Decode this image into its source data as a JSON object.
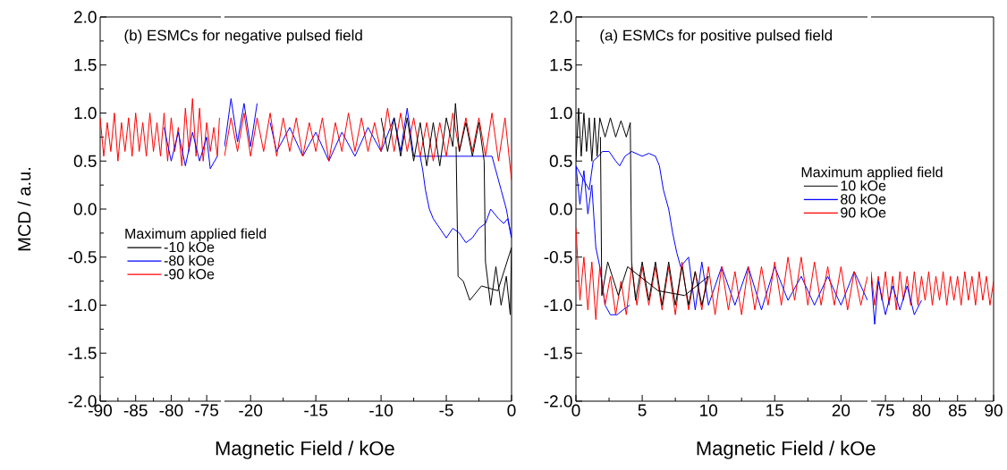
{
  "chart_data": [
    {
      "type": "line",
      "title": "(b) ESMCs for negative pulsed field",
      "ylabel": "MCD / a.u.",
      "xlim": [
        -90,
        -73
      ],
      "xticks": [
        -90,
        -85,
        -80,
        -75
      ],
      "ylim": [
        -2,
        2
      ],
      "yticks": [
        {
          "value": -2,
          "label": "-2.0"
        },
        {
          "value": -1.5,
          "label": "-1.5"
        },
        {
          "value": -1,
          "label": "-1.0"
        },
        {
          "value": -0.5,
          "label": "-0.5"
        },
        {
          "value": 0,
          "label": "0.0"
        },
        {
          "value": 0.5,
          "label": "0.5"
        },
        {
          "value": 1,
          "label": "1.0"
        },
        {
          "value": 1.5,
          "label": "1.5"
        },
        {
          "value": 2,
          "label": "2.0"
        }
      ],
      "series": [
        {
          "color": "#0000ff",
          "x": [
            -81,
            -80,
            -79,
            -78,
            -77,
            -76,
            -75,
            -74.5,
            -73.5
          ],
          "values": [
            0.85,
            0.5,
            0.8,
            0.45,
            0.8,
            0.5,
            0.75,
            0.42,
            0.55
          ]
        },
        {
          "color": "#ff0000",
          "x": [
            -90,
            -89.5,
            -89,
            -88.5,
            -88,
            -87.5,
            -87,
            -86.5,
            -86,
            -85.5,
            -85,
            -84.5,
            -84,
            -83.5,
            -83,
            -82.5,
            -82,
            -81.5,
            -81,
            -80.5,
            -80,
            -79.5,
            -79,
            -78.5,
            -78,
            -77.5,
            -77,
            -76.5,
            -76,
            -75.5,
            -75,
            -74.5,
            -74,
            -73.5,
            -73.2
          ],
          "values": [
            0.95,
            0.55,
            0.9,
            0.6,
            1.0,
            0.5,
            0.9,
            0.6,
            0.95,
            0.55,
            1.0,
            0.6,
            0.9,
            0.55,
            1.0,
            0.6,
            0.9,
            0.55,
            1.0,
            0.5,
            0.95,
            0.6,
            0.85,
            0.45,
            1.05,
            0.6,
            1.15,
            0.55,
            1.05,
            0.5,
            0.9,
            0.6,
            0.85,
            0.55,
            0.95
          ]
        }
      ]
    },
    {
      "type": "line",
      "xlabel": "Magnetic Field / kOe",
      "legend_title": "Maximum applied field",
      "legend": "left",
      "tick_labels": "x",
      "xlim": [
        -22,
        0
      ],
      "xticks": [
        -20,
        -15,
        -10,
        -5,
        0
      ],
      "ylim": [
        -2,
        2
      ],
      "series": [
        {
          "name": "-10 kOe",
          "color": "#000000",
          "x": [
            -10,
            -9.5,
            -9,
            -8.5,
            -8,
            -7.5,
            -7,
            -6.5,
            -6,
            -5.5,
            -5,
            -4.5,
            -4.3,
            -4,
            -3.5,
            -3,
            -2.5,
            -2.1,
            -2.0,
            -1.6,
            -1.2,
            -0.8,
            -0.4,
            -0.1,
            0,
            -1.05,
            -2.3,
            -3.2,
            -3.7,
            -4.1,
            -4.25
          ],
          "values": [
            0.95,
            0.6,
            0.95,
            0.55,
            0.95,
            0.5,
            0.9,
            0.45,
            0.9,
            0.45,
            0.95,
            0.65,
            1.1,
            0.6,
            0.9,
            0.55,
            0.9,
            0.5,
            -0.55,
            -1.0,
            -0.6,
            -1.0,
            -0.7,
            -1.1,
            -0.4,
            -0.85,
            -0.8,
            -0.95,
            -0.75,
            -0.7,
            0.65
          ]
        },
        {
          "name": "-80 kOe",
          "color": "#0000ff",
          "x": [
            -22,
            -21.5,
            -21,
            -20.5,
            -20,
            -19.5,
            -19,
            -18.5,
            -18,
            -17,
            -16,
            -15,
            -14,
            -13,
            -12,
            -11,
            -10,
            -9,
            -8.5,
            -8,
            -7.5,
            -1.5,
            -1.2,
            -0.8,
            -0.4,
            0,
            -0.3,
            -0.6,
            -1,
            -1.6,
            -2,
            -2.5,
            -3,
            -3.5,
            -4,
            -4.5,
            -5,
            -5.5,
            -6,
            -6.3,
            -6.6,
            -6.8,
            -7
          ],
          "values": [
            0.65,
            1.15,
            0.7,
            1.1,
            0.65,
            1.1,
            null,
            0.9,
            0.6,
            0.85,
            0.55,
            0.8,
            0.5,
            0.8,
            0.55,
            0.85,
            0.6,
            0.95,
            0.6,
            1.05,
            0.55,
            0.55,
            0.4,
            0.2,
            0.0,
            -0.3,
            -0.1,
            -0.15,
            -0.1,
            0.0,
            -0.15,
            -0.2,
            -0.3,
            -0.35,
            -0.25,
            -0.2,
            -0.3,
            -0.2,
            -0.1,
            0.0,
            0.2,
            0.4,
            0.55
          ]
        },
        {
          "name": "-90 kOe",
          "color": "#ff0000",
          "x": [
            -22,
            -21.5,
            -21,
            -20.5,
            -20,
            -19.5,
            -19,
            -18.5,
            -18,
            -17.5,
            -17,
            -16.5,
            -16,
            -15.5,
            -15,
            -14.5,
            -14,
            -13.5,
            -13,
            -12.5,
            -12,
            -11.5,
            -11,
            -10.5,
            -10,
            -9.5,
            -9,
            -8.5,
            -8,
            -7.5,
            -7,
            -6.5,
            -6,
            -5.5,
            -5,
            -4.5,
            -4,
            -3.5,
            -3,
            -2.5,
            -2,
            -1.5,
            -1,
            -0.5,
            0
          ],
          "values": [
            0.55,
            0.95,
            0.6,
            1.0,
            0.55,
            0.95,
            0.6,
            1.0,
            0.55,
            0.95,
            0.6,
            0.95,
            0.55,
            0.9,
            0.6,
            0.95,
            0.5,
            0.9,
            0.6,
            1.0,
            0.6,
            0.95,
            0.6,
            0.9,
            0.6,
            1.05,
            0.6,
            1.0,
            0.6,
            0.95,
            0.55,
            0.9,
            0.5,
            0.9,
            0.55,
            1.0,
            0.6,
            0.95,
            0.6,
            0.95,
            0.55,
            1.0,
            0.5,
            0.95,
            0.3
          ]
        }
      ]
    },
    {
      "type": "line",
      "title": "(a) ESMCs for positive pulsed field",
      "xlabel": "Magnetic Field / kOe",
      "legend_title": "Maximum applied field",
      "legend": "right",
      "xlim": [
        0,
        22
      ],
      "xticks": [
        0,
        5,
        10,
        15,
        20
      ],
      "ylim": [
        -2,
        2
      ],
      "yticks": [
        {
          "value": -2,
          "label": "-2.0"
        },
        {
          "value": -1.5,
          "label": "-1.5"
        },
        {
          "value": -1,
          "label": "-1.0"
        },
        {
          "value": -0.5,
          "label": "-0.5"
        },
        {
          "value": 0,
          "label": "0.0"
        },
        {
          "value": 0.5,
          "label": "0.5"
        },
        {
          "value": 1,
          "label": "1.0"
        },
        {
          "value": 1.5,
          "label": "1.5"
        },
        {
          "value": 2,
          "label": "2.0"
        }
      ],
      "series": [
        {
          "name": "10 kOe",
          "color": "#000000",
          "x": [
            0,
            0.2,
            0.4,
            0.6,
            0.8,
            1.0,
            1.2,
            1.4,
            1.6,
            1.8,
            2.2,
            2.6,
            3.0,
            3.4,
            3.8,
            4.1,
            4.2,
            4.5,
            5,
            5.5,
            6,
            6.5,
            7,
            7.5,
            8,
            8.5,
            9,
            9.5,
            10,
            8.2,
            6.2,
            3.9,
            3.2,
            2.4,
            1.95,
            1.85
          ],
          "values": [
            0.5,
            1.05,
            0.55,
            1.0,
            0.6,
            0.95,
            0.5,
            0.95,
            0.55,
            0.95,
            0.75,
            0.95,
            0.75,
            0.92,
            0.75,
            0.9,
            -0.55,
            -0.95,
            -0.55,
            -0.95,
            -0.55,
            -1.0,
            -0.55,
            -1.0,
            -0.6,
            -1.0,
            -0.65,
            -1.0,
            -0.7,
            -0.9,
            -0.85,
            -0.6,
            -0.9,
            -0.55,
            -0.9,
            0.75
          ]
        },
        {
          "name": "80 kOe",
          "color": "#0000ff",
          "x": [
            22,
            21,
            20,
            19,
            18,
            17,
            16,
            15,
            14,
            13,
            12,
            11,
            10,
            9.5,
            9,
            8.5,
            7.9,
            7.6,
            7.3,
            7,
            6.6,
            6.3,
            6,
            5.5,
            5,
            4.2,
            3.7,
            3.3,
            3.0,
            2.5,
            2.0,
            1.7,
            1.3,
            1.0,
            0,
            0.3,
            0.6,
            0.9,
            1.2,
            1.5,
            1.8,
            2.2,
            2.6,
            3.1,
            3.55,
            4.05
          ],
          "values": [
            -0.95,
            -0.65,
            -1.0,
            -0.7,
            -1.0,
            -0.7,
            -0.95,
            -0.6,
            -1.05,
            -0.6,
            -1.0,
            -0.6,
            -1.0,
            -0.55,
            -1.05,
            -0.5,
            -0.6,
            -0.45,
            -0.25,
            0.0,
            0.2,
            0.45,
            0.55,
            0.58,
            0.55,
            0.6,
            0.55,
            0.45,
            0.5,
            0.6,
            0.6,
            0.55,
            0.5,
            0.2,
            0.45,
            0.05,
            0.4,
            -0.05,
            0.25,
            -0.4,
            -0.6,
            -1.0,
            -1.1,
            -1.1,
            -1.05,
            -1.0
          ]
        },
        {
          "name": "90 kOe",
          "color": "#ff0000",
          "x": [
            0,
            0.3,
            0.6,
            0.9,
            1.2,
            1.5,
            1.8,
            2.2,
            2.6,
            3.0,
            3.4,
            3.8,
            4.2,
            4.6,
            5,
            5.5,
            6,
            6.5,
            7,
            7.5,
            8,
            8.5,
            9,
            9.5,
            10,
            10.5,
            11,
            11.5,
            12,
            12.5,
            13,
            13.5,
            14,
            14.5,
            15,
            15.5,
            16,
            16.5,
            17,
            17.5,
            18,
            18.5,
            19,
            19.5,
            20,
            20.5,
            21,
            21.5,
            22
          ],
          "values": [
            -0.2,
            -0.95,
            -0.5,
            -1.05,
            -0.55,
            -1.15,
            -0.6,
            -1.0,
            -0.7,
            -1.1,
            -0.75,
            -1.1,
            -0.6,
            -1.0,
            -0.6,
            -1.0,
            -0.6,
            -1.05,
            -0.6,
            -1.1,
            -0.55,
            -1.05,
            -0.65,
            -1.05,
            -0.6,
            -1.1,
            -0.6,
            -1.05,
            -0.65,
            -1.1,
            -0.6,
            -1.05,
            -0.6,
            -1.0,
            -0.55,
            -1.0,
            -0.5,
            -0.95,
            -0.5,
            -1.0,
            -0.55,
            -1.0,
            -0.6,
            -1.0,
            -0.6,
            -1.05,
            -0.65,
            -1.0,
            -0.7
          ]
        }
      ]
    },
    {
      "type": "line",
      "tick_labels": "x",
      "xlim": [
        73,
        90
      ],
      "xticks": [
        75,
        80,
        85,
        90
      ],
      "ylim": [
        -2,
        2
      ],
      "series": [
        {
          "color": "#0000ff",
          "x": [
            73,
            73.5,
            74,
            75,
            76,
            77,
            78,
            79,
            80
          ],
          "values": [
            -0.7,
            -1.2,
            -0.75,
            -1.1,
            -0.8,
            -1.05,
            -0.8,
            -1.1,
            -0.95
          ]
        },
        {
          "color": "#ff0000",
          "x": [
            73,
            73.5,
            74,
            74.5,
            75,
            75.5,
            76,
            76.5,
            77,
            77.5,
            78,
            78.5,
            79,
            79.5,
            80,
            80.5,
            81,
            81.5,
            82,
            82.5,
            83,
            83.5,
            84,
            84.5,
            85,
            85.5,
            86,
            86.5,
            87,
            87.5,
            88,
            88.5,
            89,
            89.5,
            90
          ],
          "values": [
            -0.65,
            -1.0,
            -0.7,
            -0.95,
            -0.65,
            -1.0,
            -0.7,
            -1.05,
            -0.65,
            -0.95,
            -0.7,
            -1.0,
            -0.65,
            -1.0,
            -0.7,
            -0.95,
            -0.65,
            -1.0,
            -0.7,
            -0.95,
            -0.65,
            -1.0,
            -0.7,
            -0.95,
            -0.7,
            -1.0,
            -0.65,
            -0.95,
            -0.7,
            -1.0,
            -0.65,
            -0.95,
            -0.7,
            -1.0,
            -0.75
          ]
        }
      ]
    }
  ]
}
